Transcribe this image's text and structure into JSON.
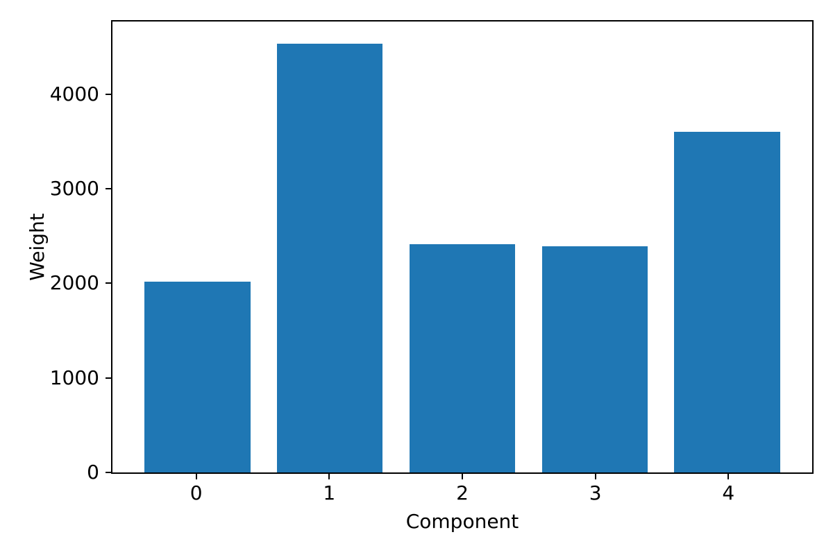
{
  "chart_data": {
    "type": "bar",
    "title": "",
    "xlabel": "Component",
    "ylabel": "Weight",
    "categories": [
      "0",
      "1",
      "2",
      "3",
      "4"
    ],
    "values": [
      2020,
      4535,
      2415,
      2390,
      3600
    ],
    "yticks": [
      0,
      1000,
      2000,
      3000,
      4000
    ],
    "ylim": [
      0,
      4768
    ],
    "xlim": [
      -0.64,
      4.64
    ],
    "bar_width": 0.8,
    "bar_color": "#1f77b4",
    "axis_color": "#000000",
    "text_color": "#000000",
    "background_color": "#ffffff",
    "grid": false,
    "legend": "none"
  }
}
